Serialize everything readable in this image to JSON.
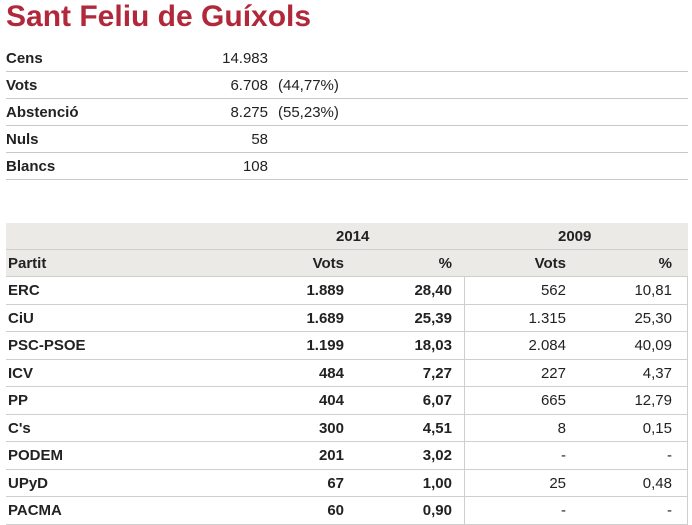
{
  "title": "Sant Feliu de Guíxols",
  "summary": [
    {
      "label": "Cens",
      "value": "14.983",
      "pct": ""
    },
    {
      "label": "Vots",
      "value": "6.708",
      "pct": "(44,77%)"
    },
    {
      "label": "Abstenció",
      "value": "8.275",
      "pct": "(55,23%)"
    },
    {
      "label": "Nuls",
      "value": "58",
      "pct": ""
    },
    {
      "label": "Blancs",
      "value": "108",
      "pct": ""
    }
  ],
  "results": {
    "year_2014": "2014",
    "year_2009": "2009",
    "col_party": "Partit",
    "col_votes": "Vots",
    "col_pct": "%",
    "rows": [
      {
        "party": "ERC",
        "v14": "1.889",
        "p14": "28,40",
        "v09": "562",
        "p09": "10,81"
      },
      {
        "party": "CiU",
        "v14": "1.689",
        "p14": "25,39",
        "v09": "1.315",
        "p09": "25,30"
      },
      {
        "party": "PSC-PSOE",
        "v14": "1.199",
        "p14": "18,03",
        "v09": "2.084",
        "p09": "40,09"
      },
      {
        "party": "ICV",
        "v14": "484",
        "p14": "7,27",
        "v09": "227",
        "p09": "4,37"
      },
      {
        "party": "PP",
        "v14": "404",
        "p14": "6,07",
        "v09": "665",
        "p09": "12,79"
      },
      {
        "party": "C's",
        "v14": "300",
        "p14": "4,51",
        "v09": "8",
        "p09": "0,15"
      },
      {
        "party": "PODEM",
        "v14": "201",
        "p14": "3,02",
        "v09": "-",
        "p09": "-"
      },
      {
        "party": "UPyD",
        "v14": "67",
        "p14": "1,00",
        "v09": "25",
        "p09": "0,48"
      },
      {
        "party": "PACMA",
        "v14": "60",
        "p14": "0,90",
        "v09": "-",
        "p09": "-"
      }
    ]
  }
}
